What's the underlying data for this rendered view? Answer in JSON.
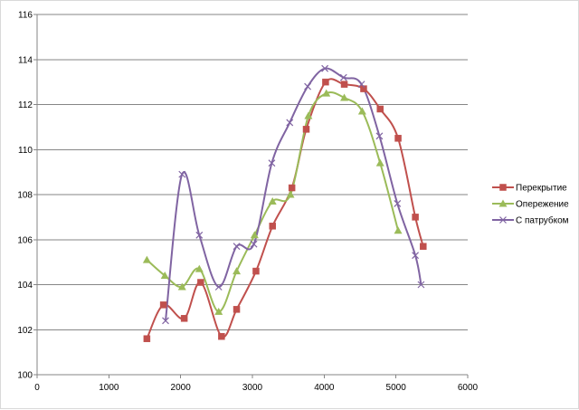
{
  "chart_data": {
    "type": "line",
    "title": "",
    "xlabel": "",
    "ylabel": "",
    "xlim": [
      0,
      6000
    ],
    "ylim": [
      100,
      116
    ],
    "x_ticks": [
      0,
      1000,
      2000,
      3000,
      4000,
      5000,
      6000
    ],
    "y_ticks": [
      100,
      102,
      104,
      106,
      108,
      110,
      112,
      114,
      116
    ],
    "grid": "horizontal",
    "legend_position": "right",
    "series": [
      {
        "name": "Перекрытие",
        "color": "#c0504d",
        "marker": "square",
        "points": [
          [
            1530,
            101.6
          ],
          [
            1760,
            103.1
          ],
          [
            2050,
            102.5
          ],
          [
            2280,
            104.1
          ],
          [
            2570,
            101.7
          ],
          [
            2780,
            102.9
          ],
          [
            3050,
            104.6
          ],
          [
            3280,
            106.6
          ],
          [
            3550,
            108.3
          ],
          [
            3750,
            110.9
          ],
          [
            4020,
            113.0
          ],
          [
            4280,
            112.9
          ],
          [
            4550,
            112.7
          ],
          [
            4780,
            111.8
          ],
          [
            5030,
            110.5
          ],
          [
            5270,
            107.0
          ],
          [
            5380,
            105.7
          ]
        ]
      },
      {
        "name": "Опережение",
        "color": "#9bbb59",
        "marker": "triangle",
        "points": [
          [
            1530,
            105.1
          ],
          [
            1780,
            104.4
          ],
          [
            2020,
            103.9
          ],
          [
            2260,
            104.7
          ],
          [
            2530,
            102.8
          ],
          [
            2780,
            104.6
          ],
          [
            3030,
            106.2
          ],
          [
            3280,
            107.7
          ],
          [
            3530,
            108.0
          ],
          [
            3780,
            111.5
          ],
          [
            4030,
            112.5
          ],
          [
            4280,
            112.3
          ],
          [
            4530,
            111.7
          ],
          [
            4780,
            109.4
          ],
          [
            5030,
            106.4
          ]
        ]
      },
      {
        "name": "С патрубком",
        "color": "#8064a2",
        "marker": "x",
        "points": [
          [
            1790,
            102.4
          ],
          [
            2020,
            108.9
          ],
          [
            2260,
            106.2
          ],
          [
            2530,
            103.9
          ],
          [
            2780,
            105.7
          ],
          [
            3020,
            105.8
          ],
          [
            3270,
            109.4
          ],
          [
            3520,
            111.2
          ],
          [
            3770,
            112.8
          ],
          [
            4010,
            113.6
          ],
          [
            4270,
            113.2
          ],
          [
            4520,
            112.9
          ],
          [
            4770,
            110.6
          ],
          [
            5020,
            107.6
          ],
          [
            5270,
            105.3
          ],
          [
            5350,
            104.0
          ]
        ]
      }
    ]
  }
}
